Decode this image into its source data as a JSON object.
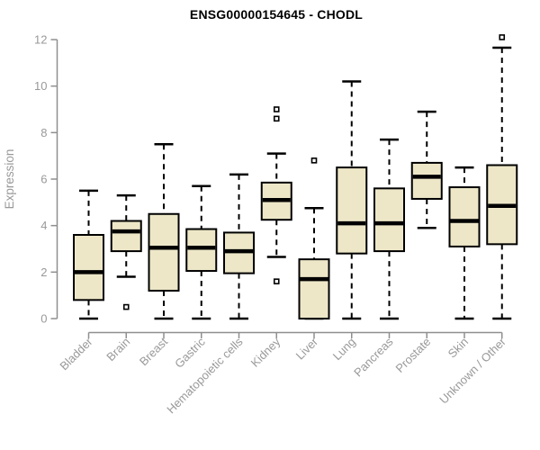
{
  "chart_data": {
    "type": "boxplot",
    "title": "ENSG00000154645 - CHODL",
    "ylabel": "Expression",
    "xlabel": "",
    "ylim": [
      0,
      12
    ],
    "yticks": [
      0,
      2,
      4,
      6,
      8,
      10,
      12
    ],
    "grid": false,
    "legend": "none",
    "colors": {
      "box_fill": "#EDE7C8",
      "box_stroke": "#000000",
      "median": "#000000",
      "whisker": "#000000",
      "outlier_fill": "#ffffff",
      "outlier_stroke": "#000000",
      "axis": "#8F8F8F",
      "tick_label": "#999999",
      "title": "#000000"
    },
    "categories": [
      "Bladder",
      "Brain",
      "Breast",
      "Gastric",
      "Hematopoietic cells",
      "Kidney",
      "Liver",
      "Lung",
      "Pancreas",
      "Prostate",
      "Skin",
      "Unknown / Other"
    ],
    "series": [
      {
        "category": "Bladder",
        "whisker_low": 0,
        "q1": 0.8,
        "median": 2.0,
        "q3": 3.6,
        "whisker_high": 5.5,
        "outliers": []
      },
      {
        "category": "Brain",
        "whisker_low": 1.8,
        "q1": 2.9,
        "median": 3.75,
        "q3": 4.2,
        "whisker_high": 5.3,
        "outliers": [
          0.5
        ]
      },
      {
        "category": "Breast",
        "whisker_low": 0,
        "q1": 1.2,
        "median": 3.05,
        "q3": 4.5,
        "whisker_high": 7.5,
        "outliers": []
      },
      {
        "category": "Gastric",
        "whisker_low": 0,
        "q1": 2.05,
        "median": 3.05,
        "q3": 3.85,
        "whisker_high": 5.7,
        "outliers": []
      },
      {
        "category": "Hematopoietic cells",
        "whisker_low": 0,
        "q1": 1.95,
        "median": 2.9,
        "q3": 3.7,
        "whisker_high": 6.2,
        "outliers": []
      },
      {
        "category": "Kidney",
        "whisker_low": 2.65,
        "q1": 4.25,
        "median": 5.1,
        "q3": 5.85,
        "whisker_high": 7.1,
        "outliers": [
          9.0,
          8.6,
          1.6
        ]
      },
      {
        "category": "Liver",
        "whisker_low": 0,
        "q1": 0,
        "median": 1.7,
        "q3": 2.55,
        "whisker_high": 4.75,
        "outliers": [
          6.8
        ]
      },
      {
        "category": "Lung",
        "whisker_low": 0,
        "q1": 2.8,
        "median": 4.1,
        "q3": 6.5,
        "whisker_high": 10.2,
        "outliers": []
      },
      {
        "category": "Pancreas",
        "whisker_low": 0,
        "q1": 2.9,
        "median": 4.1,
        "q3": 5.6,
        "whisker_high": 7.7,
        "outliers": []
      },
      {
        "category": "Prostate",
        "whisker_low": 3.9,
        "q1": 5.15,
        "median": 6.1,
        "q3": 6.7,
        "whisker_high": 8.9,
        "outliers": []
      },
      {
        "category": "Skin",
        "whisker_low": 0,
        "q1": 3.1,
        "median": 4.2,
        "q3": 5.65,
        "whisker_high": 6.5,
        "outliers": []
      },
      {
        "category": "Unknown / Other",
        "whisker_low": 0,
        "q1": 3.2,
        "median": 4.85,
        "q3": 6.6,
        "whisker_high": 11.65,
        "outliers": [
          12.1
        ]
      }
    ]
  }
}
